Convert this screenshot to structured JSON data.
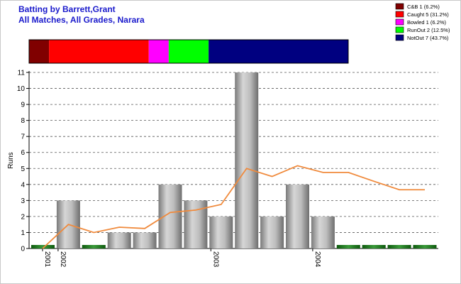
{
  "title_line1": "Batting by Barrett,Grant",
  "title_line2": "All Matches, All Grades, Narara",
  "legend": [
    {
      "label": "C&B 1 (6.2%)",
      "color": "#800000"
    },
    {
      "label": "Caught 5 (31.2%)",
      "color": "#ff0000"
    },
    {
      "label": "Bowled 1 (6.2%)",
      "color": "#ff00ff"
    },
    {
      "label": "RunOut 2 (12.5%)",
      "color": "#00ff00"
    },
    {
      "label": "NotOut 7 (43.7%)",
      "color": "#000080"
    }
  ],
  "chart_data": {
    "type": "bar",
    "ylabel": "Runs",
    "ylim": [
      0,
      11
    ],
    "yticks": [
      0,
      1,
      2,
      3,
      4,
      5,
      6,
      7,
      8,
      9,
      10,
      11
    ],
    "grid": true,
    "dismissal_bar": [
      {
        "name": "C&B",
        "count": 1,
        "color": "#800000"
      },
      {
        "name": "Caught",
        "count": 5,
        "color": "#ff0000"
      },
      {
        "name": "Bowled",
        "count": 1,
        "color": "#ff00ff"
      },
      {
        "name": "RunOut",
        "count": 2,
        "color": "#00ff00"
      },
      {
        "name": "NotOut",
        "count": 7,
        "color": "#000080"
      }
    ],
    "x_labels": [
      {
        "label": "2001",
        "index": 0
      },
      {
        "label": "2002",
        "index": 1
      },
      {
        "label": "2003",
        "index": 7
      },
      {
        "label": "2004",
        "index": 11
      }
    ],
    "series": [
      {
        "name": "Runs",
        "type": "bar",
        "values": [
          0,
          3,
          0,
          1,
          1,
          4,
          3,
          2,
          11,
          2,
          4,
          2,
          0,
          0,
          0,
          0
        ]
      },
      {
        "name": "Average",
        "type": "line",
        "color": "#f08a3c",
        "values": [
          0,
          1.5,
          1,
          1.33,
          1.25,
          2.25,
          2.4,
          2.75,
          5,
          4.5,
          5.17,
          4.75,
          4.75,
          4.2,
          3.67,
          3.67
        ]
      }
    ]
  }
}
